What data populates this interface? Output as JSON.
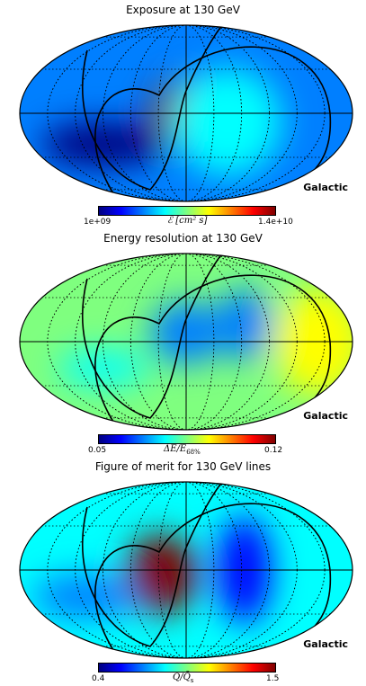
{
  "chart_data": [
    {
      "type": "heatmap",
      "title": "Exposure at 130 GeV",
      "projection_label": "Galactic",
      "colorbar": {
        "min": "1e+09",
        "max": "1.4e+10",
        "label_main": "ℰ",
        "label_rest": "[cm² s]"
      },
      "colors": [
        "#00007f",
        "#0000ff",
        "#007fff",
        "#00ffff",
        "#7fff7f",
        "#ffff00",
        "#ff7f00",
        "#ff0000",
        "#7f0000"
      ],
      "blobs": [
        {
          "x": 0.0,
          "y": 0.02,
          "sx": 40,
          "sy": 35,
          "v": 0.9
        },
        {
          "x": 0.25,
          "y": -0.1,
          "sx": 60,
          "sy": 60,
          "v": 0.15
        },
        {
          "x": -0.5,
          "y": -0.35,
          "sx": 70,
          "sy": 25,
          "v": -0.2
        }
      ],
      "base": 0.2
    },
    {
      "type": "heatmap",
      "title": "Energy resolution at 130 GeV",
      "projection_label": "Galactic",
      "colorbar": {
        "min": "0.05",
        "max": "0.12",
        "label_main": "ΔE/E",
        "label_rest": "68%"
      },
      "colors": [
        "#00007f",
        "#0000ff",
        "#007fff",
        "#00ffff",
        "#7fff7f",
        "#ffff00",
        "#ff7f00",
        "#ff0000",
        "#7f0000"
      ],
      "blobs": [
        {
          "x": 0.0,
          "y": 0.1,
          "sx": 40,
          "sy": 35,
          "v": -0.25
        },
        {
          "x": 0.35,
          "y": 0.2,
          "sx": 30,
          "sy": 40,
          "v": -0.35
        },
        {
          "x": -0.5,
          "y": -0.3,
          "sx": 50,
          "sy": 20,
          "v": -0.2
        },
        {
          "x": 0.8,
          "y": 0.0,
          "sx": 50,
          "sy": 60,
          "v": 0.12
        }
      ],
      "base": 0.55
    },
    {
      "type": "heatmap",
      "title": "Figure of merit for 130 GeV lines",
      "projection_label": "Galactic",
      "colorbar": {
        "min": "0.4",
        "max": "1.5",
        "label_main": "Q/Q̄",
        "label_rest": "s"
      },
      "colors": [
        "#00007f",
        "#0000ff",
        "#007fff",
        "#00ffff",
        "#7fff7f",
        "#ffff00",
        "#ff7f00",
        "#ff0000",
        "#7f0000"
      ],
      "blobs": [
        {
          "x": -0.15,
          "y": -0.05,
          "sx": 40,
          "sy": 45,
          "v": 0.95
        },
        {
          "x": 0.35,
          "y": 0.0,
          "sx": 30,
          "sy": 60,
          "v": -0.2
        },
        {
          "x": -0.6,
          "y": -0.3,
          "sx": 60,
          "sy": 25,
          "v": -0.15
        }
      ],
      "base": 0.35
    }
  ]
}
